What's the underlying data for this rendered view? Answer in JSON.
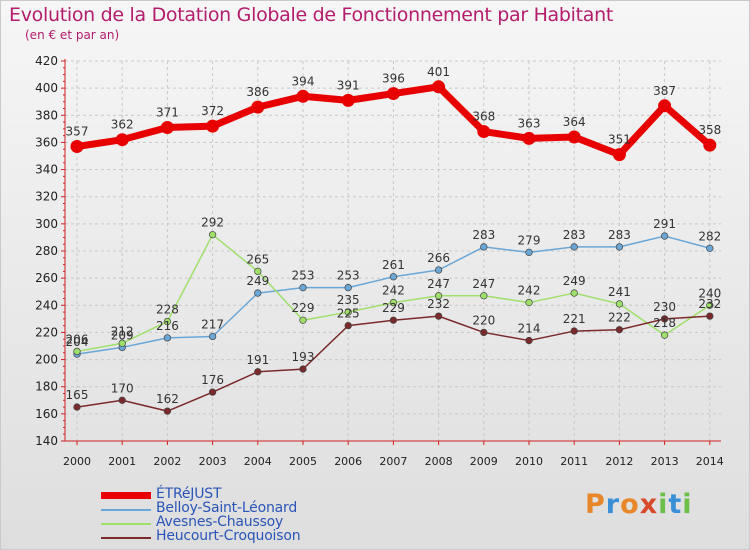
{
  "title": "Evolution de la Dotation Globale de Fonctionnement par Habitant",
  "subtitle": "(en € et par an)",
  "colors": {
    "title": "#b41c6c",
    "legend_text": "#2a55b8",
    "etrejust": "#e80000",
    "belloy": "#6aa6d6",
    "avesnes": "#9ee06a",
    "heucourt": "#7a2a2a"
  },
  "logo": {
    "text": "Proxiti",
    "letters": [
      "P",
      "r",
      "o",
      "x",
      "i",
      "t",
      "i"
    ]
  },
  "chart_data": {
    "type": "line",
    "x": [
      "2000",
      "2001",
      "2002",
      "2003",
      "2004",
      "2005",
      "2006",
      "2007",
      "2008",
      "2009",
      "2010",
      "2011",
      "2012",
      "2013",
      "2014"
    ],
    "yticks": [
      140,
      160,
      180,
      200,
      220,
      240,
      260,
      280,
      300,
      320,
      340,
      360,
      380,
      400,
      420
    ],
    "ylim": [
      140,
      420
    ],
    "grid": true,
    "legend_position": "bottom-left",
    "series": [
      {
        "name": "ÉTRéJUST",
        "color": "#e80000",
        "values": [
          357,
          362,
          371,
          372,
          386,
          394,
          391,
          396,
          401,
          368,
          363,
          364,
          351,
          387,
          358
        ]
      },
      {
        "name": "Belloy-Saint-Léonard",
        "color": "#6aa6d6",
        "values": [
          204,
          209,
          216,
          217,
          249,
          253,
          253,
          261,
          266,
          283,
          279,
          283,
          283,
          291,
          282
        ]
      },
      {
        "name": "Avesnes-Chaussoy",
        "color": "#9ee06a",
        "values": [
          206,
          212,
          228,
          292,
          265,
          229,
          235,
          242,
          247,
          247,
          242,
          249,
          241,
          218,
          240
        ]
      },
      {
        "name": "Heucourt-Croquoison",
        "color": "#7a2a2a",
        "values": [
          165,
          170,
          162,
          176,
          191,
          193,
          225,
          229,
          232,
          220,
          214,
          221,
          222,
          230,
          232
        ]
      }
    ]
  }
}
